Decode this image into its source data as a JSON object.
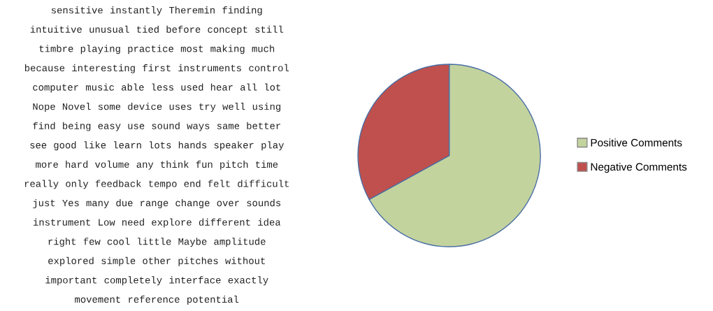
{
  "chart_data": [
    {
      "type": "other",
      "annotations": [
        "sensitive",
        "instantly",
        "Theremin",
        "finding",
        "intuitive",
        "unusual",
        "tied",
        "before",
        "concept",
        "still",
        "timbre",
        "playing",
        "practice",
        "most",
        "making",
        "much",
        "because",
        "interesting",
        "first",
        "instruments",
        "control",
        "computer",
        "music",
        "able",
        "less",
        "used",
        "hear",
        "all",
        "lot",
        "Nope",
        "Novel",
        "some",
        "device",
        "uses",
        "try",
        "well",
        "using",
        "find",
        "being",
        "easy",
        "use",
        "sound",
        "ways",
        "same",
        "better",
        "see",
        "good",
        "like",
        "learn",
        "lots",
        "hands",
        "speaker",
        "play",
        "more",
        "hard",
        "volume",
        "any",
        "think",
        "fun",
        "pitch",
        "time",
        "really",
        "only",
        "feedback",
        "tempo",
        "end",
        "felt",
        "difficult",
        "just",
        "Yes",
        "many",
        "due",
        "range",
        "change",
        "over",
        "sounds",
        "instrument",
        "Low",
        "need",
        "explore",
        "different",
        "idea",
        "right",
        "few",
        "cool",
        "little",
        "Maybe",
        "amplitude",
        "explored",
        "simple",
        "other",
        "pitches",
        "without",
        "important",
        "completely",
        "interface",
        "exactly",
        "movement",
        "reference",
        "potential"
      ]
    },
    {
      "type": "pie",
      "categories": [
        "Positive Comments",
        "Negative Comments"
      ],
      "values": [
        67,
        33
      ],
      "colors": [
        "#c3d39e",
        "#c0504d"
      ],
      "legend": "right"
    }
  ]
}
